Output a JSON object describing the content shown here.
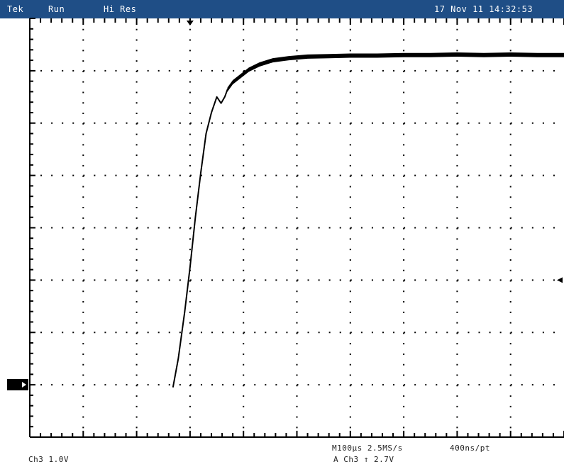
{
  "topbar": {
    "brand": "Tek",
    "mode": "Run",
    "acq": "Hi Res",
    "timestamp": "17 Nov 11 14:32:53"
  },
  "footer": {
    "channel_scale": "Ch3   1.0V",
    "timebase": "M100µs 2.5MS/s",
    "resolution": "400ns/pt",
    "trigger": "A Ch3 ↑ 2.7V"
  },
  "colors": {
    "topbar_bg": "#1f4e86",
    "trace": "#000000",
    "grid_dots": "#000000"
  },
  "chart_data": {
    "type": "line",
    "title": "",
    "xlabel": "",
    "ylabel": "",
    "xlim": [
      0,
      10
    ],
    "ylim": [
      -2,
      6
    ],
    "grid": true,
    "series": [
      {
        "x": [
          2.68,
          2.78,
          2.9,
          3.0,
          3.1,
          3.2,
          3.3,
          3.4,
          3.5,
          3.58,
          3.65,
          3.7,
          3.8,
          3.95,
          4.1,
          4.3,
          4.55,
          4.85,
          5.2,
          5.6,
          6.0,
          6.5,
          7.0,
          7.5,
          8.0,
          8.5,
          9.0,
          9.5,
          10.0
        ],
        "y": [
          -1.05,
          -0.5,
          0.4,
          1.25,
          2.2,
          3.05,
          3.8,
          4.2,
          4.5,
          4.38,
          4.5,
          4.64,
          4.78,
          4.9,
          5.02,
          5.12,
          5.2,
          5.24,
          5.27,
          5.28,
          5.29,
          5.29,
          5.3,
          5.3,
          5.31,
          5.3,
          5.31,
          5.3,
          5.3
        ]
      }
    ]
  }
}
